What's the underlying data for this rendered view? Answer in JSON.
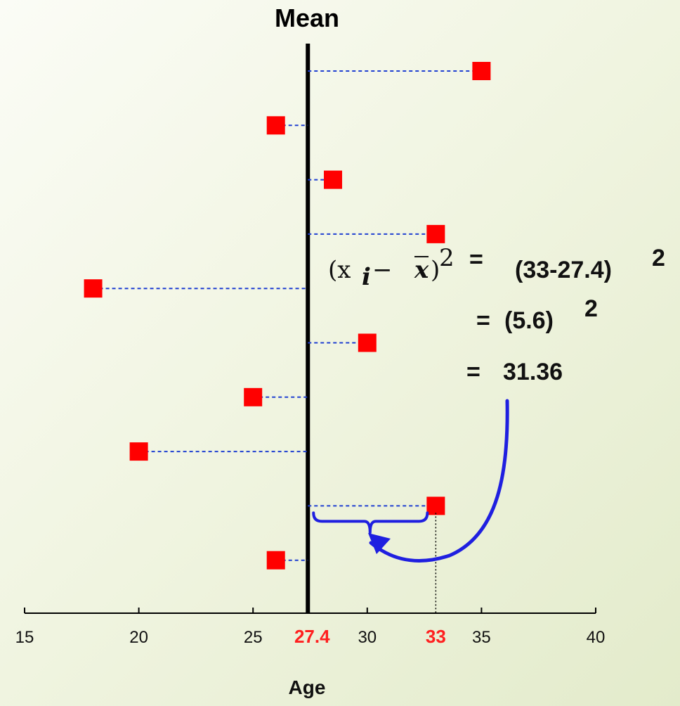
{
  "chart_data": {
    "type": "scatter",
    "title": "Mean",
    "xlabel": "Age",
    "ylabel": "",
    "xlim": [
      15,
      40
    ],
    "ticks": [
      15,
      20,
      25,
      30,
      35,
      40
    ],
    "mean": 27.4,
    "highlight_tick": 33,
    "mean_label": "27.4",
    "highlight_label": "33",
    "points": [
      35,
      26,
      28.5,
      33,
      18,
      30,
      25,
      20,
      33,
      26
    ],
    "colors": {
      "point": "#ff0000",
      "dash": "#1f3fd1",
      "arrow": "#1f1fe0",
      "mean_line": "#000000",
      "highlight": "#ff1f1f"
    },
    "formula": {
      "lhs": "(x",
      "lhs_sub": "i",
      "lhs_minus": " − ",
      "lhs_xbar": "x",
      "lhs_close": ")",
      "lhs_exp": "2",
      "equals": "=",
      "rhs1": "(33-27.4)",
      "rhs1_exp": "2",
      "rhs2_equals": "=",
      "rhs2": "(5.6)",
      "rhs2_exp": "2",
      "rhs3_equals": "=",
      "rhs3": "31.36"
    }
  }
}
